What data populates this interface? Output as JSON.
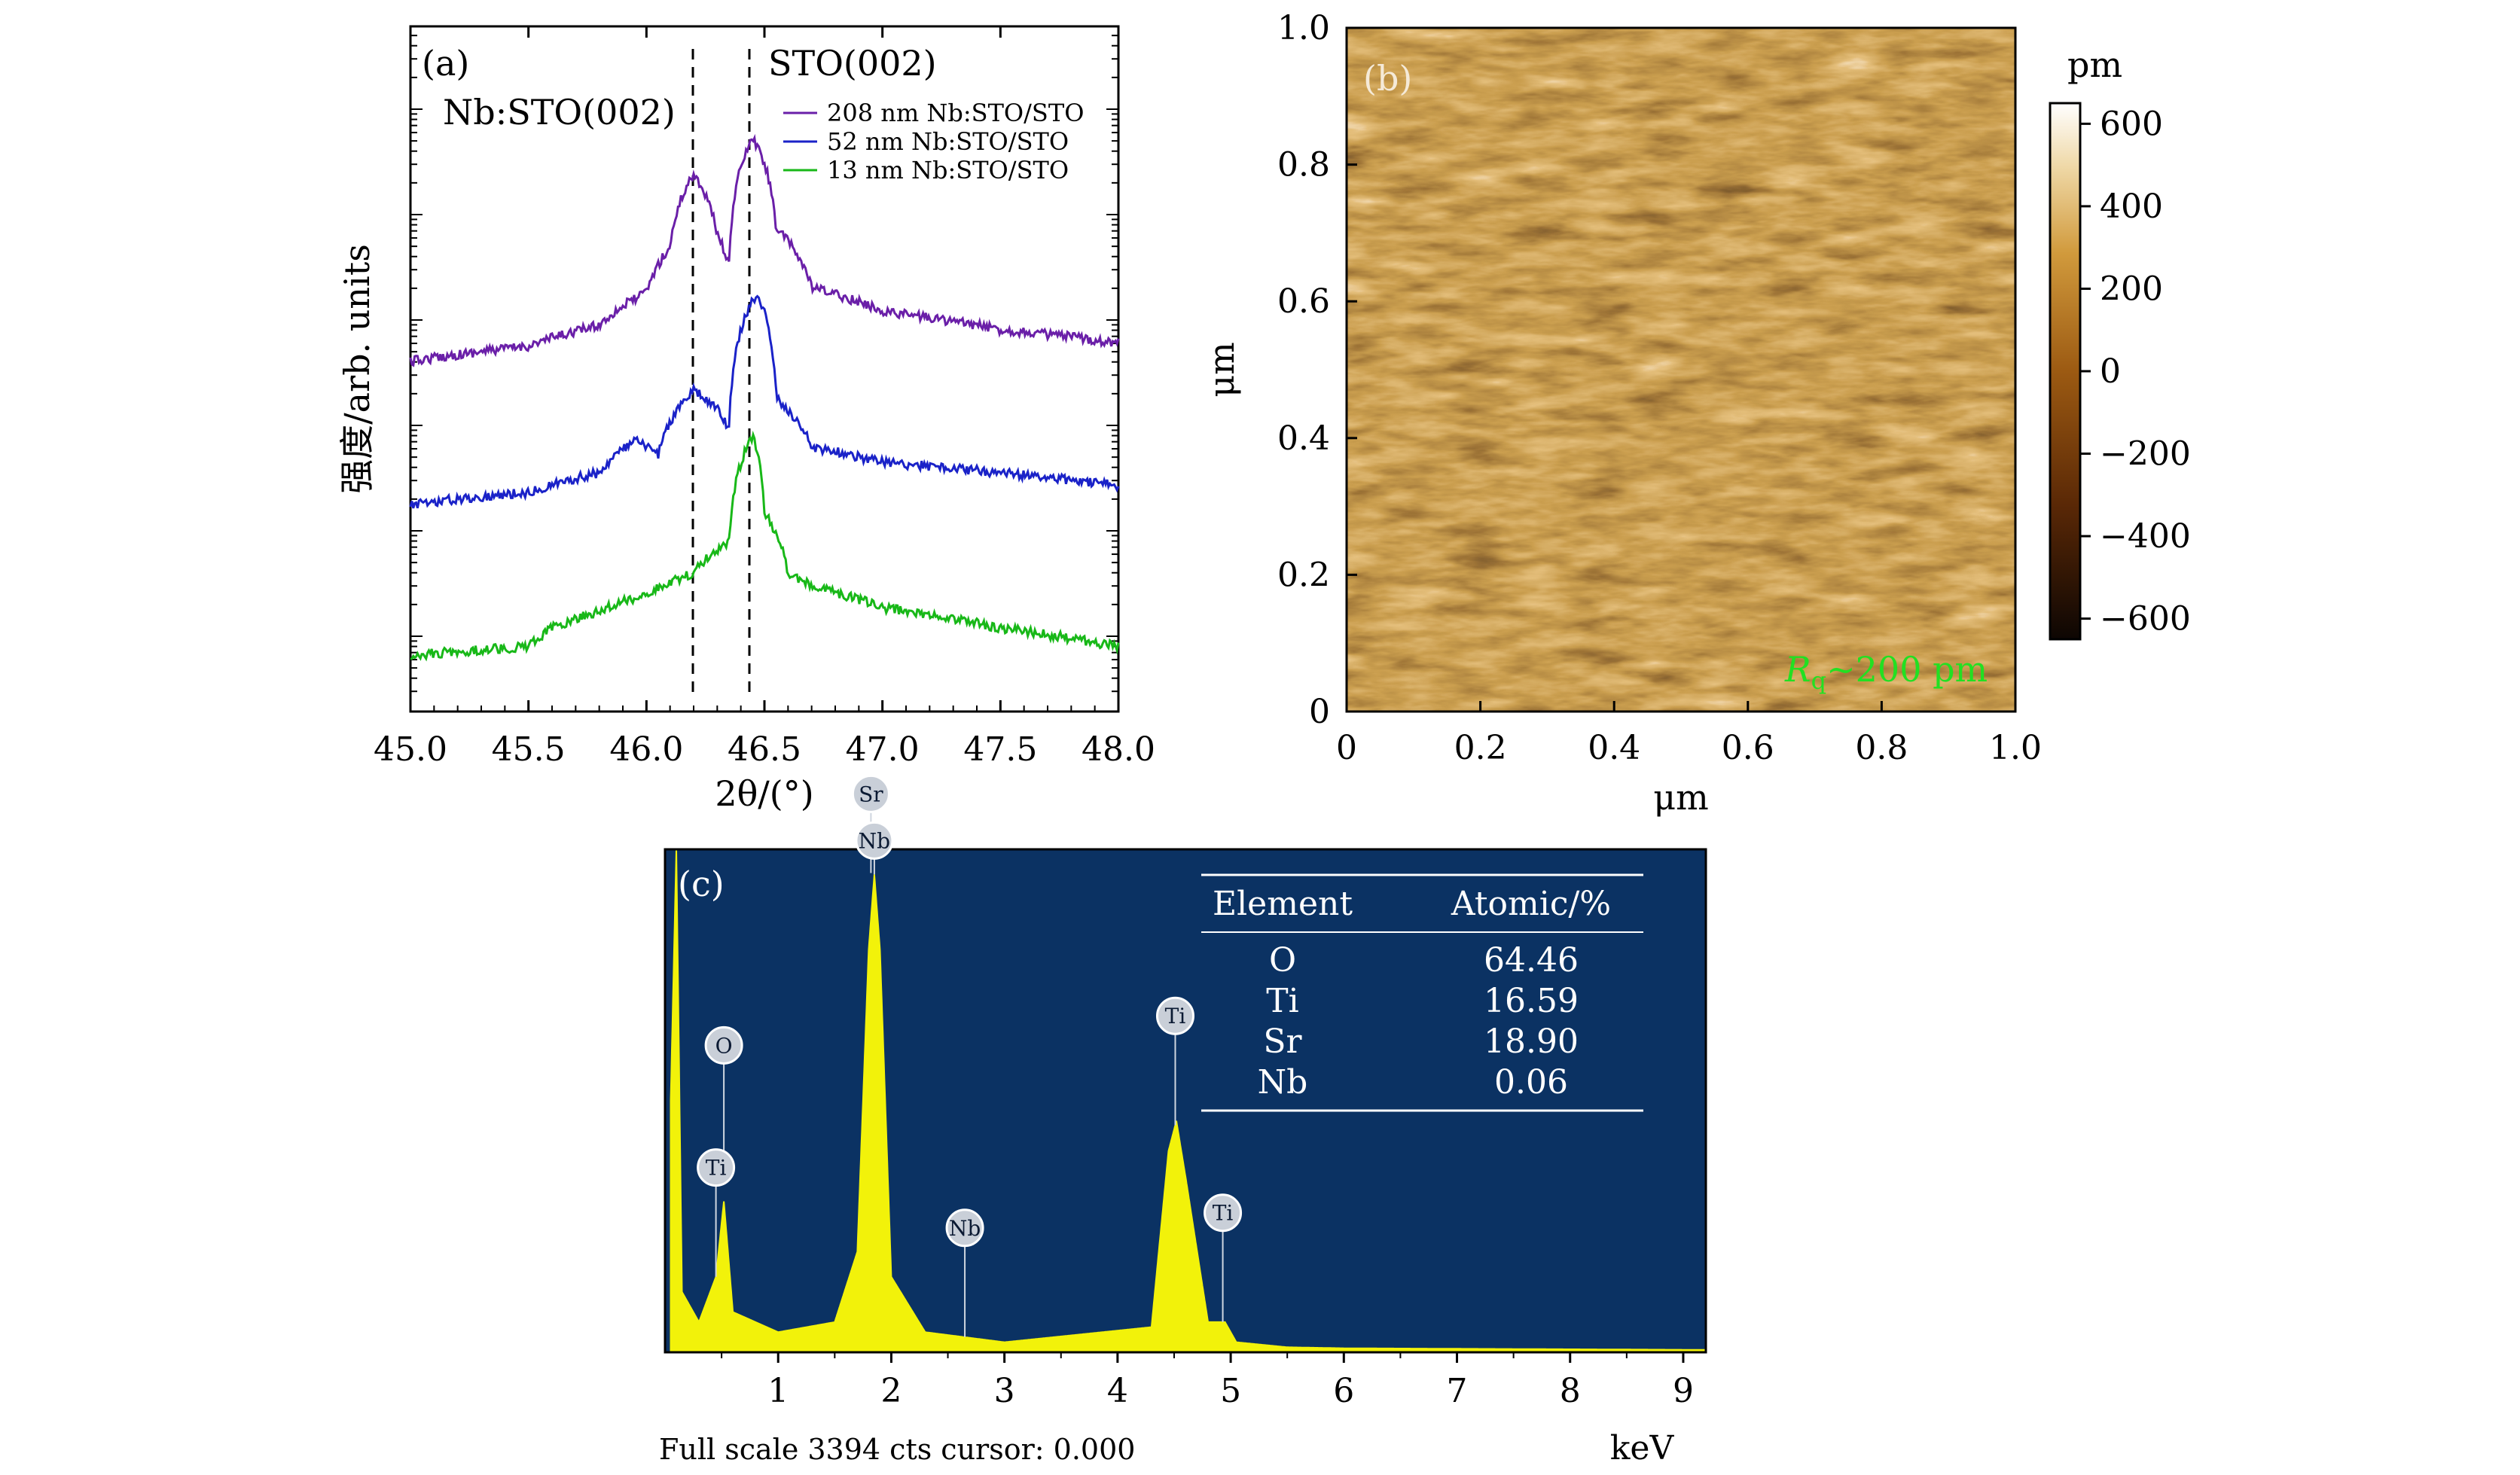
{
  "panel_a": {
    "label": "(a)",
    "ylabel": "强度/arb. units",
    "xlabel": "2θ/(°)",
    "annot_left": "Nb:STO(002)",
    "annot_right": "STO(002)",
    "legend": [
      "208 nm Nb:STO/STO",
      "52 nm Nb:STO/STO",
      "13 nm Nb:STO/STO"
    ],
    "xticks": [
      "45.0",
      "45.5",
      "46.0",
      "46.5",
      "47.0",
      "47.5",
      "48.0"
    ]
  },
  "panel_b": {
    "label": "(b)",
    "xlabel": "μm",
    "ylabel": "μm",
    "xticks": [
      "0",
      "0.2",
      "0.4",
      "0.6",
      "0.8",
      "1.0"
    ],
    "yticks": [
      "0",
      "0.2",
      "0.4",
      "0.6",
      "0.8",
      "1.0"
    ],
    "colorbar_unit": "pm",
    "colorbar_ticks": [
      "600",
      "400",
      "200",
      "0",
      "−200",
      "−400",
      "−600"
    ],
    "roughness_sym": "R",
    "roughness_sub": "q",
    "roughness_val": "~200 pm"
  },
  "panel_c": {
    "label": "(c)",
    "xlabel": "keV",
    "footer": "Full scale 3394 cts cursor: 0.000",
    "xticks": [
      "1",
      "2",
      "3",
      "4",
      "5",
      "6",
      "7",
      "8",
      "9"
    ],
    "peak_labels": [
      "Sr",
      "Nb",
      "O",
      "Ti",
      "Nb",
      "Ti",
      "Ti"
    ],
    "table": {
      "headers": [
        "Element",
        "Atomic/%"
      ],
      "rows": [
        {
          "el": "O",
          "val": "64.46"
        },
        {
          "el": "Ti",
          "val": "16.59"
        },
        {
          "el": "Sr",
          "val": "18.90"
        },
        {
          "el": "Nb",
          "val": "0.06"
        }
      ]
    }
  },
  "chart_data": [
    {
      "type": "line",
      "title": "",
      "xlabel": "2θ/(°)",
      "ylabel": "强度/arb. units",
      "xlim": [
        45.0,
        48.0
      ],
      "yscale": "log",
      "annotations": [
        "Nb:STO(002)",
        "STO(002)"
      ],
      "reference_lines_x": [
        46.2,
        46.45
      ],
      "series": [
        {
          "name": "208 nm Nb:STO/STO",
          "color": "#6a1fa8",
          "x": [
            45.0,
            45.5,
            45.8,
            46.0,
            46.1,
            46.2,
            46.3,
            46.35,
            46.45,
            46.55,
            46.7,
            47.0,
            47.5,
            48.0
          ],
          "y": [
            1.0,
            1.4,
            2.2,
            4.5,
            12,
            60,
            16,
            8,
            130,
            18,
            5,
            3.0,
            2.0,
            1.5
          ]
        },
        {
          "name": "52 nm Nb:STO/STO",
          "color": "#1a22c8",
          "x": [
            45.0,
            45.5,
            45.8,
            45.95,
            46.05,
            46.2,
            46.3,
            46.35,
            46.47,
            46.55,
            46.7,
            47.0,
            47.5,
            48.0
          ],
          "y": [
            1.0,
            1.3,
            2.0,
            4.0,
            3.0,
            12,
            8,
            5,
            100,
            10,
            3.5,
            2.5,
            2.0,
            1.5
          ]
        },
        {
          "name": "13 nm Nb:STO/STO",
          "color": "#18b818",
          "x": [
            45.0,
            45.5,
            45.6,
            45.8,
            46.0,
            46.2,
            46.35,
            46.45,
            46.5,
            46.6,
            46.7,
            47.0,
            47.5,
            48.0
          ],
          "y": [
            1.0,
            1.2,
            1.8,
            2.6,
            3.8,
            6.0,
            12,
            120,
            22,
            6.0,
            4.5,
            2.8,
            1.8,
            1.2
          ]
        }
      ]
    },
    {
      "type": "heatmap",
      "title": "",
      "xlabel": "μm",
      "ylabel": "μm",
      "xlim": [
        0,
        1.0
      ],
      "ylim": [
        0,
        1.0
      ],
      "colorbar_label": "pm",
      "colorbar_range": [
        -650,
        650
      ],
      "colormap": "copper-like (black→brown→orange→white)",
      "annotation": "Rq~200 pm"
    },
    {
      "type": "area",
      "title": "",
      "xlabel": "keV",
      "xlim": [
        0,
        9.2
      ],
      "footer": "Full scale 3394 cts cursor: 0.000",
      "x": [
        0.05,
        0.1,
        0.15,
        0.3,
        0.45,
        0.52,
        0.6,
        1.0,
        1.5,
        1.7,
        1.8,
        1.85,
        1.9,
        2.0,
        2.3,
        2.65,
        3.0,
        4.3,
        4.45,
        4.52,
        4.6,
        4.8,
        4.95,
        5.05,
        5.5,
        6.0,
        9.0
      ],
      "y": [
        0.5,
        1.0,
        0.12,
        0.06,
        0.15,
        0.3,
        0.08,
        0.04,
        0.06,
        0.2,
        0.8,
        0.95,
        0.8,
        0.15,
        0.04,
        0.03,
        0.02,
        0.05,
        0.4,
        0.46,
        0.35,
        0.06,
        0.06,
        0.02,
        0.01,
        0.008,
        0.005
      ],
      "peaks": [
        {
          "label": "O",
          "x": 0.52
        },
        {
          "label": "Ti",
          "x": 0.45
        },
        {
          "label": "Sr",
          "x": 1.82
        },
        {
          "label": "Nb",
          "x": 1.85
        },
        {
          "label": "Nb",
          "x": 2.65
        },
        {
          "label": "Ti",
          "x": 4.51
        },
        {
          "label": "Ti",
          "x": 4.93
        }
      ],
      "table": {
        "columns": [
          "Element",
          "Atomic/%"
        ],
        "rows": [
          [
            "O",
            64.46
          ],
          [
            "Ti",
            16.59
          ],
          [
            "Sr",
            18.9
          ],
          [
            "Nb",
            0.06
          ]
        ]
      },
      "colors": {
        "background": "#0b3263",
        "spectrum": "#f2f20a"
      }
    }
  ]
}
